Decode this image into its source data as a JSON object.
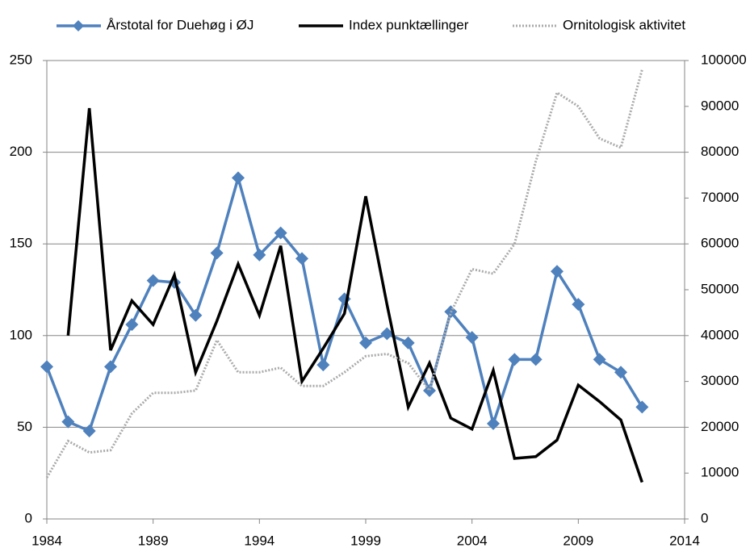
{
  "chart_data": {
    "type": "line",
    "x": [
      1984,
      1985,
      1986,
      1987,
      1988,
      1989,
      1990,
      1991,
      1992,
      1993,
      1994,
      1995,
      1996,
      1997,
      1998,
      1999,
      2000,
      2001,
      2002,
      2003,
      2004,
      2005,
      2006,
      2007,
      2008,
      2009,
      2010,
      2011,
      2012
    ],
    "series": [
      {
        "name": "Årstotal for Duehøg i ØJ",
        "color": "#4f81bd",
        "marker": "diamond",
        "values": [
          83,
          53,
          48,
          83,
          106,
          130,
          129,
          111,
          145,
          186,
          144,
          156,
          142,
          84,
          120,
          96,
          101,
          96,
          70,
          113,
          99,
          52,
          87,
          87,
          135,
          117,
          87,
          80,
          61
        ]
      },
      {
        "name": "Index punktællinger",
        "color": "#000000",
        "values": [
          null,
          100,
          224,
          92,
          119,
          106,
          133,
          80,
          108,
          139,
          111,
          149,
          75,
          93,
          112,
          176,
          117,
          61,
          85,
          55,
          49,
          81,
          33,
          34,
          43,
          73,
          64,
          54,
          20
        ]
      },
      {
        "name": "Ornitologisk aktivitet",
        "color": "#aaaaaa",
        "dash": true,
        "axis": "y2",
        "values": [
          9000,
          17000,
          14500,
          15000,
          23000,
          27500,
          27500,
          28000,
          39000,
          32000,
          32000,
          33000,
          29000,
          29000,
          32000,
          35500,
          36000,
          34000,
          28000,
          45000,
          54500,
          53500,
          60000,
          78000,
          93000,
          90000,
          83000,
          81000,
          98000
        ]
      }
    ],
    "xlim": [
      1984,
      2014
    ],
    "xticks": [
      1984,
      1989,
      1994,
      1999,
      2004,
      2009,
      2014
    ],
    "ylim": [
      0,
      250
    ],
    "yticks": [
      0,
      50,
      100,
      150,
      200,
      250
    ],
    "y2lim": [
      0,
      100000
    ],
    "y2ticks": [
      0,
      10000,
      20000,
      30000,
      40000,
      50000,
      60000,
      70000,
      80000,
      90000,
      100000
    ],
    "grid": true,
    "legend": "top"
  }
}
